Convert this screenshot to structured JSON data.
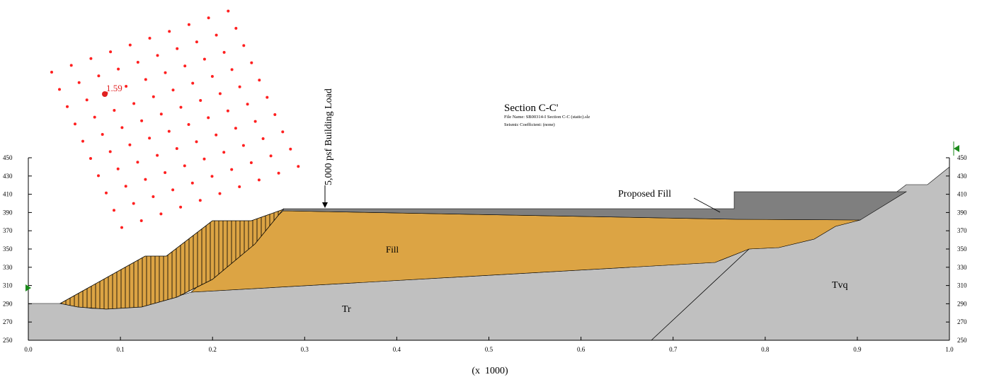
{
  "title": "Section C-C'",
  "file_name": "File Name: SB00314-I Section C-C (static).slz",
  "seismic": "Seismic Coefficient: (none)",
  "load_label": "5,000 psf Building Load",
  "safety_factor": "1.59",
  "materials": {
    "fill": "Fill",
    "tr": "Tr",
    "tvq": "Tvq",
    "proposed_fill": "Proposed Fill"
  },
  "x_axis": {
    "ticks": [
      "0.0",
      "0.1",
      "0.2",
      "0.3",
      "0.4",
      "0.5",
      "0.6",
      "0.7",
      "0.8",
      "0.9",
      "1.0"
    ],
    "unit_label": "(x  1000)"
  },
  "y_axis": {
    "ticks": [
      "250",
      "270",
      "290",
      "310",
      "330",
      "350",
      "370",
      "390",
      "410",
      "430",
      "450"
    ]
  }
}
